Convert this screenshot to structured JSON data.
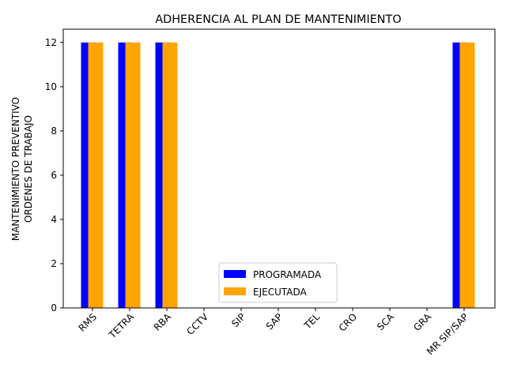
{
  "chart_data": {
    "type": "bar",
    "title": "ADHERENCIA AL PLAN DE MANTENIMIENTO",
    "xlabel": "",
    "ylabel_lines": [
      "ORDENES DE TRABAJO",
      "MANTENIMIENTO PREVENTIVO"
    ],
    "categories": [
      "RMS",
      "TETRA",
      "RBA",
      "CCTV",
      "SIP",
      "SAP",
      "TEL",
      "CRO",
      "SCA",
      "GRA",
      "MR SIP/SAP"
    ],
    "series": [
      {
        "name": "PROGRAMADA",
        "color": "#0000ff",
        "values": [
          12,
          12,
          12,
          0,
          0,
          0,
          0,
          0,
          0,
          0,
          12
        ]
      },
      {
        "name": "EJECUTADA",
        "color": "#ffa500",
        "values": [
          12,
          12,
          12,
          0,
          0,
          0,
          0,
          0,
          0,
          0,
          12
        ]
      }
    ],
    "ylim": [
      0,
      12.6
    ],
    "yticks": [
      0,
      2,
      4,
      6,
      8,
      10,
      12
    ],
    "grid": false,
    "legend_position": "lower-center"
  }
}
